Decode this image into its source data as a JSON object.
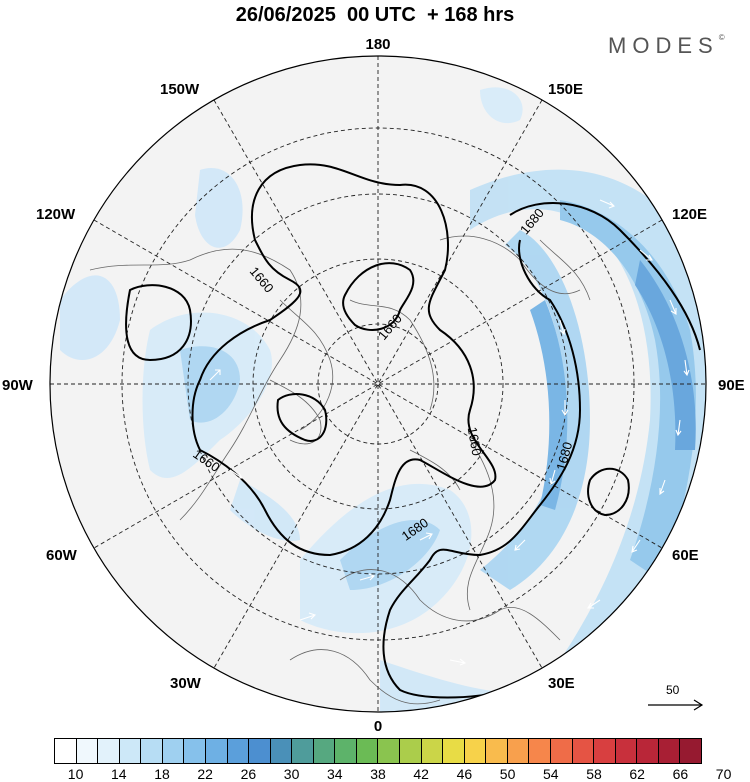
{
  "title": "26/06/2025  00 UTC  + 168 hrs",
  "brand": "MODES",
  "brand_mark": "©",
  "longitude_labels": {
    "top": "180",
    "bottom": "0",
    "left": "90W",
    "right": "90E",
    "upper_left_1": "150W",
    "upper_left_2": "120W",
    "upper_right_1": "150E",
    "upper_right_2": "120E",
    "lower_left_1": "60W",
    "lower_left_2": "30W",
    "lower_right_1": "60E",
    "lower_right_2": "30E"
  },
  "contour_labels": [
    "1660",
    "1660",
    "1660",
    "1660",
    "1680",
    "1680",
    "1680"
  ],
  "vector_scale_label": "50",
  "colorbar": {
    "tick_labels": [
      "10",
      "14",
      "18",
      "22",
      "26",
      "30",
      "34",
      "38",
      "42",
      "46",
      "50",
      "54",
      "58",
      "62",
      "66",
      "70"
    ],
    "colors": [
      "#ffffff",
      "#f0f8fd",
      "#e2f2fb",
      "#cde8f8",
      "#b7ddf4",
      "#9fd0f0",
      "#86c1eb",
      "#6eb0e4",
      "#5b9fdb",
      "#4c8fd0",
      "#4a90b8",
      "#4f9c9b",
      "#56a880",
      "#5db36a",
      "#6bbb55",
      "#8ac44f",
      "#abcd4b",
      "#cbd548",
      "#e8dc45",
      "#f7d24a",
      "#f9bb4d",
      "#f8a04d",
      "#f6864b",
      "#ef6c48",
      "#e55444",
      "#d83f40",
      "#c8303c",
      "#b92638",
      "#a81f34",
      "#961a30"
    ]
  }
}
